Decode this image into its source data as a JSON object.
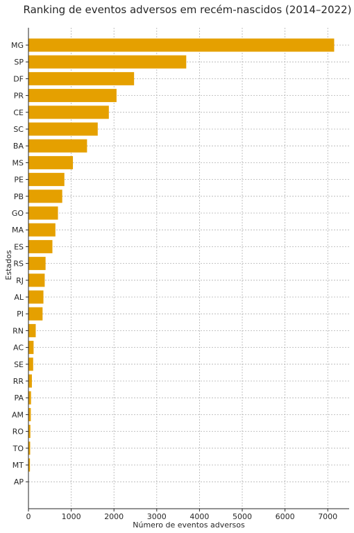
{
  "chart_data": {
    "type": "bar",
    "orientation": "horizontal",
    "title": "Ranking de eventos adversos em recém-nascidos (2014–2022)",
    "xlabel": "Número de eventos adversos",
    "ylabel": "Estados",
    "categories": [
      "MG",
      "SP",
      "DF",
      "PR",
      "CE",
      "SC",
      "BA",
      "MS",
      "PE",
      "PB",
      "GO",
      "MA",
      "ES",
      "RS",
      "RJ",
      "AL",
      "PI",
      "RN",
      "AC",
      "SE",
      "RR",
      "PA",
      "AM",
      "RO",
      "TO",
      "MT",
      "AP"
    ],
    "values": [
      7150,
      3690,
      2470,
      2060,
      1880,
      1620,
      1370,
      1040,
      840,
      790,
      690,
      630,
      560,
      400,
      380,
      350,
      330,
      170,
      120,
      110,
      80,
      60,
      55,
      45,
      40,
      35,
      5
    ],
    "xlim": [
      0,
      7500
    ],
    "xticks": [
      0,
      1000,
      2000,
      3000,
      4000,
      5000,
      6000,
      7000
    ],
    "grid": true,
    "bar_color": "#e5a000"
  }
}
